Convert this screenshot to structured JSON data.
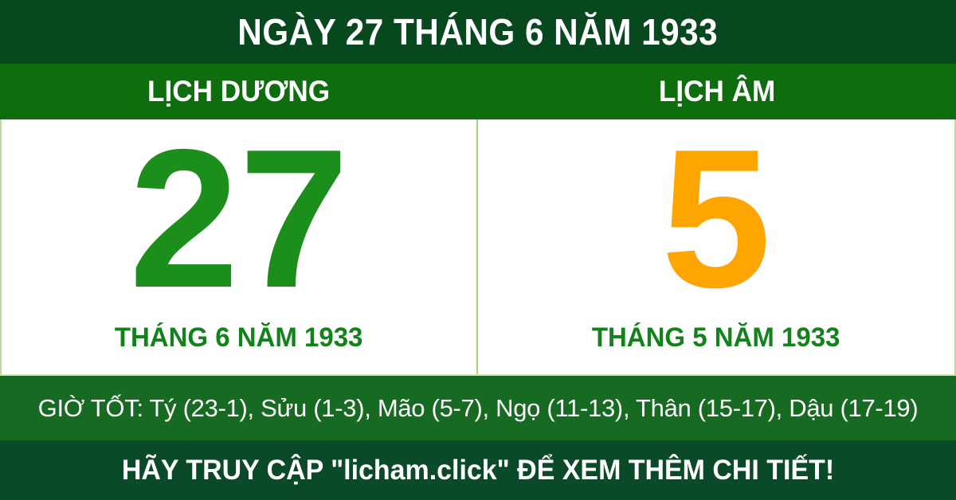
{
  "header": {
    "title": "NGÀY 27 THÁNG 6 NĂM 1933"
  },
  "calendar_bar": {
    "solar_label": "LỊCH DƯƠNG",
    "lunar_label": "LỊCH ÂM"
  },
  "solar": {
    "day": "27",
    "month_year": "THÁNG 6 NĂM 1933"
  },
  "lunar": {
    "day": "5",
    "month_year": "THÁNG 5 NĂM 1933"
  },
  "good_hours": {
    "text": "GIỜ TỐT: Tý (23-1), Sửu (1-3), Mão (5-7), Ngọ (11-13), Thân (15-17), Dậu (17-19)"
  },
  "footer": {
    "cta": "HÃY TRUY CẬP \"licham.click\" ĐỂ XEM THÊM CHI TIẾT!"
  },
  "colors": {
    "header_background": "#07481f",
    "type_bar_background": "#0e6e0d",
    "good_hours_background": "#176a22",
    "footer_background": "#0a4a28",
    "solar_day_color": "#1b8e1b",
    "lunar_day_color": "#ffa502",
    "month_text_color": "#12821a",
    "divider_color": "#a2d284",
    "text_on_green": "#ffffff"
  }
}
